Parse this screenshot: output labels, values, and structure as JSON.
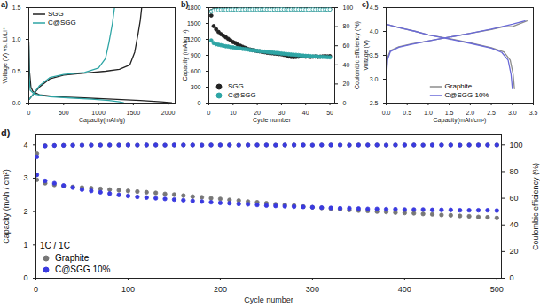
{
  "chart_data": [
    {
      "type": "line",
      "title": "a)",
      "x_label": "Capacity(mAh/g)",
      "y_label": "Voltage (V) vs. Li/Li⁺",
      "xlim": [
        0,
        2100
      ],
      "xticks": [
        0,
        500,
        1000,
        1500,
        2000
      ],
      "ylim": [
        0,
        1.5
      ],
      "yticks": [
        {
          "value": 0,
          "label": "0.0"
        },
        0.5,
        {
          "value": 1,
          "label": "1.0"
        },
        1.5
      ],
      "legend": "top-left",
      "series": [
        {
          "name": "SGG",
          "color": "#222222",
          "line_style": "solid",
          "x": [
            0,
            10,
            30,
            60,
            150,
            400,
            800,
            1200,
            1600,
            1900,
            2050,
            null,
            0,
            50,
            150,
            300,
            500,
            800,
            1100,
            1300,
            1450,
            1520,
            1570,
            1600,
            1620
          ],
          "values": [
            0.95,
            0.5,
            0.25,
            0.18,
            0.13,
            0.1,
            0.08,
            0.06,
            0.04,
            0.02,
            0.005,
            null,
            0.05,
            0.12,
            0.25,
            0.38,
            0.44,
            0.47,
            0.5,
            0.53,
            0.6,
            0.8,
            1.1,
            1.3,
            1.5
          ]
        },
        {
          "name": "C@SGG",
          "color": "#2ea5a5",
          "line_style": "solid",
          "x": [
            0,
            5,
            20,
            80,
            300,
            600,
            900,
            1150,
            1300,
            1360,
            null,
            0,
            50,
            150,
            300,
            500,
            800,
            1000,
            1100,
            1150,
            1200,
            1230
          ],
          "values": [
            0.9,
            0.4,
            0.2,
            0.14,
            0.1,
            0.08,
            0.06,
            0.04,
            0.02,
            0.005,
            null,
            0.05,
            0.12,
            0.27,
            0.4,
            0.45,
            0.48,
            0.55,
            0.7,
            0.95,
            1.25,
            1.5
          ]
        }
      ]
    },
    {
      "type": "scatter",
      "title": "b)",
      "x_label": "Cycle number",
      "y_label": "Capacity (mAhg⁻¹)",
      "y2_label": "Coulombic efficiency (%)",
      "xlim": [
        0,
        52
      ],
      "xticks": [
        0,
        10,
        20,
        30,
        40,
        50
      ],
      "ylim": [
        0,
        1800
      ],
      "yticks": [
        0,
        300,
        600,
        900,
        1200,
        1500,
        1800
      ],
      "y2lim": [
        0,
        100
      ],
      "y2ticks": [
        0,
        20,
        40,
        60,
        80,
        100
      ],
      "legend": "bottom-left",
      "x": [
        1,
        2,
        3,
        4,
        5,
        6,
        7,
        8,
        9,
        10,
        11,
        12,
        13,
        14,
        15,
        16,
        17,
        18,
        19,
        20,
        21,
        22,
        23,
        24,
        25,
        26,
        27,
        28,
        29,
        30,
        31,
        32,
        33,
        34,
        35,
        36,
        37,
        38,
        39,
        40,
        41,
        42,
        43,
        44,
        45,
        46,
        47,
        48,
        49,
        50
      ],
      "series": [
        {
          "name": "SGG",
          "color": "#222222",
          "marker": "circle",
          "values": [
            1650,
            1450,
            1390,
            1340,
            1300,
            1270,
            1240,
            1210,
            1180,
            1150,
            1130,
            1100,
            1080,
            1060,
            1040,
            1020,
            1010,
            1000,
            990,
            980,
            975,
            965,
            960,
            950,
            945,
            940,
            935,
            930,
            925,
            920,
            910,
            900,
            880,
            870,
            865,
            870,
            875,
            880,
            880,
            875,
            880,
            870,
            875,
            880,
            870,
            875,
            880,
            885,
            880,
            885
          ]
        },
        {
          "name": "C@SGG",
          "color": "#2ea5a5",
          "marker": "circle",
          "values": [
            1180,
            1130,
            1110,
            1100,
            1090,
            1080,
            1070,
            1065,
            1055,
            1050,
            1040,
            1035,
            1030,
            1020,
            1015,
            1010,
            1000,
            995,
            990,
            985,
            980,
            975,
            970,
            965,
            960,
            955,
            950,
            945,
            940,
            935,
            930,
            925,
            920,
            915,
            912,
            910,
            905,
            900,
            895,
            890,
            888,
            885,
            880,
            878,
            875,
            872,
            870,
            868,
            865,
            862
          ]
        },
        {
          "color": "#222222",
          "marker": "circle_open",
          "axis": "y2",
          "values": [
            96.2,
            97.4,
            97.8,
            97.9,
            98.0,
            98.1,
            97.9,
            98.0,
            98.2,
            98.1,
            98.0,
            98.2,
            98.1,
            98.3,
            98.2,
            98.1,
            98.2,
            98.3,
            98.2,
            98.1,
            98.3,
            98.2,
            98.4,
            98.2,
            98.3,
            98.1,
            98.2,
            98.3,
            98.2,
            98.4,
            98.3,
            98.2,
            98.1,
            98.3,
            98.2,
            98.4,
            98.3,
            98.2,
            98.3,
            98.1,
            98.2,
            98.3,
            98.4,
            98.2,
            98.3,
            98.2,
            98.1,
            98.3,
            98.2,
            98.3
          ]
        },
        {
          "color": "#2ea5a5",
          "marker": "circle_open",
          "axis": "y2",
          "values": [
            95.8,
            97.0,
            97.3,
            97.5,
            97.6,
            97.7,
            97.6,
            97.8,
            97.7,
            97.9,
            97.8,
            97.7,
            97.9,
            97.8,
            98.0,
            97.9,
            97.8,
            98.0,
            97.9,
            97.8,
            98.0,
            97.9,
            98.1,
            97.9,
            98.0,
            97.8,
            97.9,
            98.0,
            97.9,
            98.1,
            98.0,
            97.9,
            97.8,
            98.0,
            97.9,
            98.1,
            98.0,
            97.9,
            98.0,
            97.8,
            97.9,
            98.0,
            98.1,
            97.9,
            98.0,
            97.9,
            97.8,
            98.0,
            97.9,
            98.0
          ]
        }
      ]
    },
    {
      "type": "line",
      "title": "c)",
      "x_label": "Capacity(mAh/cm²)",
      "y_label": "Voltage (V)",
      "xlim": [
        0,
        3.5
      ],
      "xticks": [
        {
          "value": 0,
          "label": "0.0"
        },
        0.5,
        {
          "value": 1,
          "label": "1.0"
        },
        1.5,
        {
          "value": 2,
          "label": "2.0"
        },
        2.5,
        {
          "value": 3,
          "label": "3.0"
        },
        3.5
      ],
      "ylim": [
        2.5,
        4.5
      ],
      "yticks": [
        2.5,
        {
          "value": 3,
          "label": "3.0"
        },
        3.5,
        {
          "value": 4,
          "label": "4.0"
        },
        4.5
      ],
      "legend": "bottom",
      "series": [
        {
          "name": "Graphite",
          "color": "#8c8c8c",
          "line_style": "solid",
          "x": [
            0,
            0.03,
            0.1,
            0.3,
            0.6,
            1.0,
            1.5,
            2.0,
            2.5,
            2.8,
            3.0,
            3.2,
            3.35,
            null,
            0,
            0.3,
            0.7,
            1.0,
            1.5,
            2.0,
            2.5,
            2.8,
            2.95,
            3.02,
            3.05
          ],
          "values": [
            2.95,
            3.45,
            3.6,
            3.68,
            3.74,
            3.8,
            3.88,
            3.96,
            4.04,
            4.1,
            4.1,
            4.17,
            4.22,
            null,
            4.15,
            4.08,
            4.0,
            3.93,
            3.85,
            3.76,
            3.66,
            3.57,
            3.4,
            3.1,
            2.8
          ]
        },
        {
          "name": "C@SGG 10%",
          "color": "#6a6ad8",
          "line_style": "solid",
          "x": [
            0,
            0.03,
            0.1,
            0.3,
            0.6,
            1.0,
            1.5,
            2.0,
            2.5,
            3.0,
            3.3,
            null,
            0,
            0.3,
            0.7,
            1.0,
            1.5,
            2.0,
            2.5,
            2.75,
            2.9,
            2.97,
            3.0
          ],
          "values": [
            2.9,
            3.4,
            3.58,
            3.67,
            3.73,
            3.8,
            3.88,
            3.96,
            4.05,
            4.15,
            4.22,
            null,
            4.15,
            4.08,
            4.0,
            3.93,
            3.84,
            3.75,
            3.65,
            3.56,
            3.4,
            3.1,
            2.8
          ]
        }
      ]
    },
    {
      "type": "scatter",
      "title": "d)",
      "x_label": "Cycle number",
      "y_label": "Capacity (mAh / cm²)",
      "y2_label": "Coulombic efficiency (%)",
      "annotations": [
        "1C / 1C"
      ],
      "xlim": [
        0,
        505
      ],
      "xticks": [
        0,
        100,
        200,
        300,
        400,
        500
      ],
      "ylim": [
        0,
        4.3
      ],
      "yticks": [
        0,
        1,
        2,
        3,
        4
      ],
      "y2lim": [
        0,
        107.5
      ],
      "y2ticks": [
        0,
        20,
        40,
        60,
        80,
        100
      ],
      "legend": "bottom-left",
      "x": [
        1,
        10,
        20,
        30,
        40,
        50,
        60,
        70,
        80,
        90,
        100,
        110,
        120,
        130,
        140,
        150,
        160,
        170,
        180,
        190,
        200,
        210,
        220,
        230,
        240,
        250,
        260,
        270,
        280,
        290,
        300,
        310,
        320,
        330,
        340,
        350,
        360,
        370,
        380,
        390,
        400,
        410,
        420,
        430,
        440,
        450,
        460,
        470,
        480,
        490,
        500
      ],
      "series": [
        {
          "name": "Graphite",
          "color": "#777777",
          "marker": "circle",
          "values": [
            2.95,
            2.85,
            2.8,
            2.77,
            2.74,
            2.72,
            2.7,
            2.68,
            2.66,
            2.64,
            2.62,
            2.6,
            2.58,
            2.56,
            2.53,
            2.51,
            2.48,
            2.45,
            2.43,
            2.4,
            2.38,
            2.35,
            2.33,
            2.3,
            2.28,
            2.25,
            2.22,
            2.2,
            2.18,
            2.15,
            2.13,
            2.11,
            2.09,
            2.07,
            2.05,
            2.03,
            2.02,
            2.0,
            1.99,
            1.97,
            1.96,
            1.95,
            1.93,
            1.92,
            1.9,
            1.89,
            1.87,
            1.86,
            1.84,
            1.83,
            1.81
          ]
        },
        {
          "name": "C@SGG 10%",
          "color": "#3a3adf",
          "marker": "circle",
          "values": [
            3.1,
            2.92,
            2.85,
            2.78,
            2.72,
            2.66,
            2.62,
            2.58,
            2.54,
            2.5,
            2.47,
            2.44,
            2.42,
            2.4,
            2.38,
            2.36,
            2.34,
            2.32,
            2.3,
            2.28,
            2.26,
            2.25,
            2.23,
            2.22,
            2.2,
            2.18,
            2.17,
            2.16,
            2.15,
            2.14,
            2.13,
            2.12,
            2.11,
            2.1,
            2.1,
            2.09,
            2.08,
            2.08,
            2.07,
            2.07,
            2.06,
            2.06,
            2.06,
            2.05,
            2.05,
            2.05,
            2.04,
            2.04,
            2.04,
            2.04,
            2.03
          ]
        },
        {
          "color": "#777777",
          "marker": "circle",
          "axis": "y2",
          "values": [
            93.5,
            99.4,
            99.6,
            99.7,
            99.8,
            99.8,
            99.8,
            99.9,
            99.8,
            99.9,
            99.9,
            99.8,
            99.9,
            99.9,
            99.8,
            99.9,
            99.9,
            99.9,
            99.8,
            99.9,
            99.9,
            99.9,
            99.8,
            99.9,
            99.9,
            99.9,
            99.8,
            99.9,
            99.9,
            99.9,
            99.8,
            99.9,
            99.9,
            99.9,
            99.8,
            99.9,
            99.9,
            99.9,
            99.8,
            99.9,
            99.9,
            99.9,
            99.8,
            99.9,
            99.9,
            99.9,
            99.8,
            99.9,
            99.9,
            99.9,
            99.9
          ]
        },
        {
          "color": "#3a3adf",
          "marker": "circle",
          "axis": "y2",
          "values": [
            91.0,
            99.2,
            99.5,
            99.6,
            99.7,
            99.8,
            99.8,
            99.8,
            99.9,
            99.8,
            99.9,
            99.8,
            99.9,
            99.9,
            99.8,
            99.9,
            99.9,
            99.9,
            99.8,
            99.9,
            99.9,
            99.9,
            99.8,
            99.9,
            99.9,
            99.9,
            99.8,
            99.9,
            99.9,
            99.9,
            99.8,
            99.9,
            99.9,
            99.9,
            99.8,
            99.9,
            99.9,
            99.9,
            99.8,
            99.9,
            99.9,
            99.9,
            99.8,
            99.9,
            99.9,
            99.9,
            99.8,
            99.9,
            99.9,
            99.9,
            99.9
          ]
        }
      ]
    }
  ]
}
